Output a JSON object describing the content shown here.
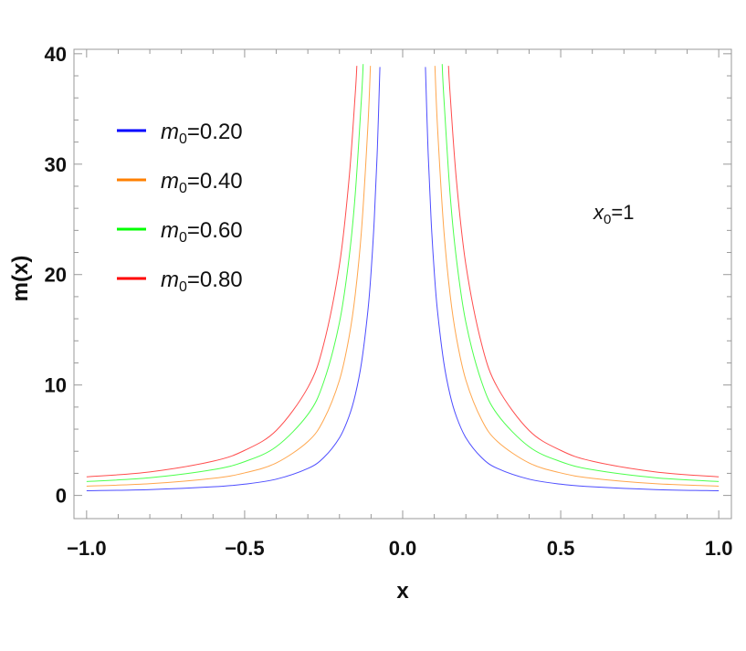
{
  "chart_data": {
    "type": "line",
    "title": "",
    "xlabel": "x",
    "ylabel": "m(x)",
    "xlim": [
      -1.04,
      1.04
    ],
    "ylim": [
      -2.1,
      40.4
    ],
    "x_ticks": [
      -1.0,
      -0.5,
      0.0,
      0.5,
      1.0
    ],
    "x_tick_labels": [
      "−1.0",
      "−0.5",
      "0.0",
      "0.5",
      "1.0"
    ],
    "y_ticks": [
      0,
      10,
      20,
      30,
      40
    ],
    "y_tick_labels": [
      "0",
      "10",
      "20",
      "30",
      "40"
    ],
    "grid": false,
    "legend_placement": "top-left",
    "annotation": {
      "base": "x",
      "sub": "0",
      "rest": "=1"
    },
    "series": [
      {
        "name": "m0=0.20",
        "label_base": "m",
        "label_sub": "0",
        "label_rest": "=0.20",
        "color": "#0000ff",
        "x": [
          -1,
          -0.8,
          -0.6,
          -0.5,
          -0.4,
          -0.3,
          -0.25,
          -0.2,
          -0.17,
          -0.15,
          -0.13,
          -0.11,
          -0.1,
          -0.09,
          -0.08,
          -0.072,
          0.072,
          0.08,
          0.09,
          0.1,
          0.11,
          0.13,
          0.15,
          0.17,
          0.2,
          0.25,
          0.3,
          0.4,
          0.5,
          0.6,
          0.8,
          1
        ],
        "y": [
          0.42,
          0.53,
          0.78,
          1.02,
          1.47,
          2.44,
          3.42,
          5.22,
          7.14,
          9.1,
          12.06,
          16.74,
          20.22,
          24.92,
          31.47,
          38.8,
          38.8,
          31.47,
          24.92,
          20.22,
          16.74,
          12.06,
          9.1,
          7.14,
          5.22,
          3.42,
          2.44,
          1.47,
          1.02,
          0.78,
          0.53,
          0.42
        ]
      },
      {
        "name": "m0=0.40",
        "label_base": "m",
        "label_sub": "0",
        "label_rest": "=0.40",
        "color": "#ff8000",
        "x": [
          -1,
          -0.8,
          -0.6,
          -0.5,
          -0.4,
          -0.3,
          -0.25,
          -0.2,
          -0.17,
          -0.15,
          -0.13,
          -0.11,
          -0.102,
          0.102,
          0.11,
          0.13,
          0.15,
          0.17,
          0.2,
          0.25,
          0.3,
          0.4,
          0.5,
          0.6,
          0.8,
          1
        ],
        "y": [
          0.84,
          1.06,
          1.55,
          2.04,
          2.94,
          4.88,
          6.84,
          10.44,
          14.28,
          18.2,
          24.12,
          33.48,
          38.9,
          38.9,
          33.48,
          24.12,
          18.2,
          14.28,
          10.44,
          6.84,
          4.88,
          2.94,
          2.04,
          1.55,
          1.06,
          0.84
        ]
      },
      {
        "name": "m0=0.60",
        "label_base": "m",
        "label_sub": "0",
        "label_rest": "=0.60",
        "color": "#00ff00",
        "x": [
          -1,
          -0.8,
          -0.6,
          -0.5,
          -0.4,
          -0.3,
          -0.25,
          -0.2,
          -0.17,
          -0.15,
          -0.13,
          -0.125,
          0.125,
          0.13,
          0.15,
          0.17,
          0.2,
          0.25,
          0.3,
          0.4,
          0.5,
          0.6,
          0.8,
          1
        ],
        "y": [
          1.26,
          1.6,
          2.33,
          3.06,
          4.41,
          7.33,
          10.26,
          15.66,
          21.42,
          27.3,
          36.18,
          39.06,
          39.06,
          36.18,
          27.3,
          21.42,
          15.66,
          10.26,
          7.33,
          4.41,
          3.06,
          2.33,
          1.6,
          1.26
        ]
      },
      {
        "name": "m0=0.80",
        "label_base": "m",
        "label_sub": "0",
        "label_rest": "=0.80",
        "color": "#ff0000",
        "x": [
          -1,
          -0.8,
          -0.6,
          -0.5,
          -0.4,
          -0.3,
          -0.25,
          -0.2,
          -0.17,
          -0.15,
          -0.145,
          0.145,
          0.15,
          0.17,
          0.2,
          0.25,
          0.3,
          0.4,
          0.5,
          0.6,
          0.8,
          1
        ],
        "y": [
          1.68,
          2.13,
          3.1,
          4.08,
          5.88,
          9.77,
          13.68,
          20.88,
          28.56,
          36.4,
          38.9,
          38.9,
          36.4,
          28.56,
          20.88,
          13.68,
          9.77,
          5.88,
          4.08,
          3.1,
          2.13,
          1.68
        ]
      }
    ]
  }
}
